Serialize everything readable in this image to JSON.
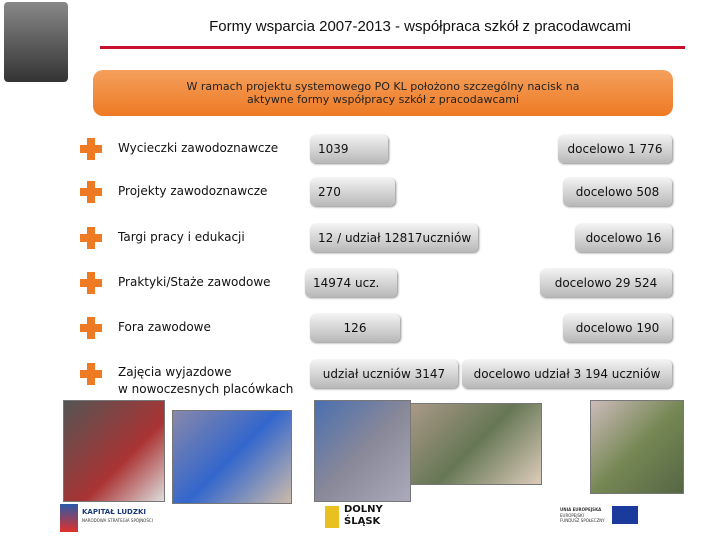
{
  "header": {
    "title": "Formy wsparcia 2007-2013 -  współpraca szkół z pracodawcami"
  },
  "banner": {
    "text": "W ramach projektu systemowego PO KL  położono szczególny nacisk na\naktywne formy współpracy szkół z pracodawcami"
  },
  "rows": [
    {
      "label": "Wycieczki zawodoznawcze",
      "achieved": "1039",
      "target": "docelowo 1 776"
    },
    {
      "label": "Projekty zawodoznawcze",
      "achieved": "270",
      "target": "docelowo 508"
    },
    {
      "label": "Targi pracy i edukacji",
      "achieved": "12 / udział 12817uczniów",
      "target": "docelowo 16"
    },
    {
      "label": "Praktyki/Staże zawodowe",
      "achieved": "14974 ucz.",
      "target": "docelowo 29 524"
    },
    {
      "label": "Fora zawodowe",
      "achieved": "126",
      "target": "docelowo 190"
    },
    {
      "label": "Zajęcia wyjazdowe\nw nowoczesnych  placówkach",
      "achieved": "udział uczniów 3147",
      "target": "docelowo udział 3 194 uczniów"
    }
  ],
  "footer": {
    "logo1": "KAPITAŁ LUDZKI",
    "logo1_sub": "NARODOWA STRATEGIA SPÓJNOŚCI",
    "logo2": "DOLNY\nŚLĄSK",
    "logo3": "UNIA EUROPEJSKA",
    "logo3_sub": "EUROPEJSKI\nFUNDUSZ SPOŁECZNY"
  }
}
